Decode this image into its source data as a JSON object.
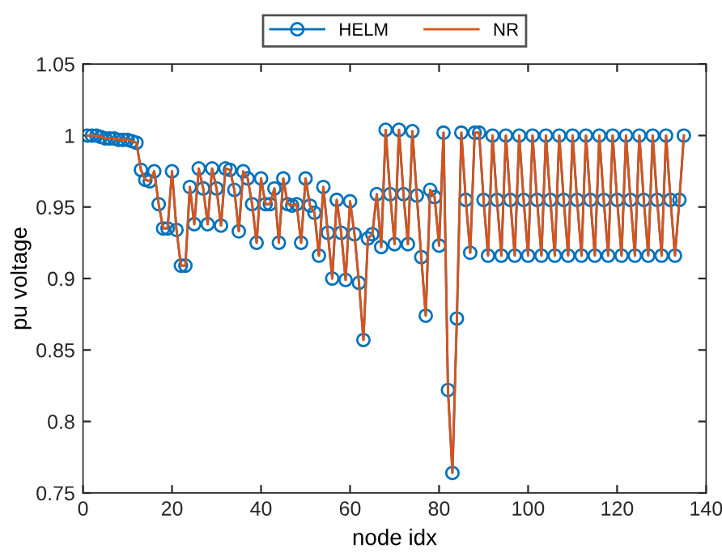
{
  "chart_data": {
    "type": "line",
    "xlabel": "node idx",
    "ylabel": "pu voltage",
    "xlim": [
      0,
      140
    ],
    "xticks": [
      0,
      20,
      40,
      60,
      80,
      100,
      120,
      140
    ],
    "ylim": [
      0.75,
      1.05
    ],
    "yticks": [
      0.75,
      0.8,
      0.85,
      0.9,
      0.95,
      1,
      1.05
    ],
    "grid": false,
    "legend": "top",
    "x": [
      1,
      2,
      3,
      4,
      5,
      6,
      7,
      8,
      9,
      10,
      11,
      12,
      13,
      14,
      15,
      16,
      17,
      18,
      19,
      20,
      21,
      22,
      23,
      24,
      25,
      26,
      27,
      28,
      29,
      30,
      31,
      32,
      33,
      34,
      35,
      36,
      37,
      38,
      39,
      40,
      41,
      42,
      43,
      44,
      45,
      46,
      47,
      48,
      49,
      50,
      51,
      52,
      53,
      54,
      55,
      56,
      57,
      58,
      59,
      60,
      61,
      62,
      63,
      64,
      65,
      66,
      67,
      68,
      69,
      70,
      71,
      72,
      73,
      74,
      75,
      76,
      77,
      78,
      79,
      80,
      81,
      82,
      83,
      84,
      85,
      86,
      87,
      88,
      89,
      90,
      91,
      92,
      93,
      94,
      95,
      96,
      97,
      98,
      99,
      100,
      101,
      102,
      103,
      104,
      105,
      106,
      107,
      108,
      109,
      110,
      111,
      112,
      113,
      114,
      115,
      116,
      117,
      118,
      119,
      120,
      121,
      122,
      123,
      124,
      125,
      126,
      127,
      128,
      129,
      130,
      131,
      132,
      133,
      134,
      135
    ],
    "series": [
      {
        "name": "HELM",
        "color": "#0072bd",
        "marker": "circle",
        "values": [
          1.0,
          1.0,
          1.0,
          0.999,
          0.998,
          0.998,
          0.998,
          0.997,
          0.997,
          0.997,
          0.996,
          0.995,
          0.976,
          0.969,
          0.968,
          0.975,
          0.952,
          0.935,
          0.935,
          0.975,
          0.934,
          0.909,
          0.909,
          0.964,
          0.938,
          0.977,
          0.963,
          0.938,
          0.977,
          0.963,
          0.937,
          0.977,
          0.976,
          0.962,
          0.933,
          0.975,
          0.97,
          0.952,
          0.925,
          0.97,
          0.952,
          0.952,
          0.963,
          0.925,
          0.97,
          0.952,
          0.951,
          0.952,
          0.925,
          0.97,
          0.951,
          0.946,
          0.916,
          0.964,
          0.932,
          0.9,
          0.955,
          0.932,
          0.899,
          0.954,
          0.931,
          0.897,
          0.857,
          0.928,
          0.931,
          0.959,
          0.922,
          1.004,
          0.959,
          0.924,
          1.004,
          0.959,
          0.924,
          1.003,
          0.958,
          0.915,
          0.874,
          0.962,
          0.957,
          0.923,
          1.002,
          0.822,
          0.764,
          0.872,
          1.002,
          0.955,
          0.918,
          1.002,
          1.002,
          0.955,
          0.916,
          1.0,
          0.955,
          0.916,
          1.0,
          0.955,
          0.916,
          1.0,
          0.955,
          0.916,
          1.0,
          0.955,
          0.916,
          1.0,
          0.955,
          0.916,
          1.0,
          0.955,
          0.916,
          1.0,
          0.955,
          0.916,
          1.0,
          0.955,
          0.916,
          1.0,
          0.955,
          0.916,
          1.0,
          0.955,
          0.916,
          1.0,
          0.955,
          0.916,
          1.0,
          0.955,
          0.916,
          1.0,
          0.955,
          0.916,
          1.0,
          0.955,
          0.916,
          0.955,
          1.0
        ]
      },
      {
        "name": "NR",
        "color": "#d95319",
        "marker": "none",
        "values": [
          1.0,
          1.0,
          1.0,
          0.999,
          0.998,
          0.998,
          0.998,
          0.997,
          0.997,
          0.997,
          0.996,
          0.995,
          0.976,
          0.969,
          0.968,
          0.975,
          0.952,
          0.935,
          0.935,
          0.975,
          0.934,
          0.909,
          0.909,
          0.964,
          0.938,
          0.977,
          0.963,
          0.938,
          0.977,
          0.963,
          0.937,
          0.977,
          0.976,
          0.962,
          0.933,
          0.975,
          0.97,
          0.952,
          0.925,
          0.97,
          0.952,
          0.952,
          0.963,
          0.925,
          0.97,
          0.952,
          0.951,
          0.952,
          0.925,
          0.97,
          0.951,
          0.946,
          0.916,
          0.964,
          0.932,
          0.9,
          0.955,
          0.932,
          0.899,
          0.954,
          0.931,
          0.897,
          0.857,
          0.928,
          0.931,
          0.959,
          0.922,
          1.004,
          0.959,
          0.924,
          1.004,
          0.959,
          0.924,
          1.003,
          0.958,
          0.915,
          0.874,
          0.962,
          0.957,
          0.923,
          1.002,
          0.822,
          0.764,
          0.872,
          1.002,
          0.955,
          0.918,
          1.002,
          1.002,
          0.955,
          0.916,
          1.0,
          0.955,
          0.916,
          1.0,
          0.955,
          0.916,
          1.0,
          0.955,
          0.916,
          1.0,
          0.955,
          0.916,
          1.0,
          0.955,
          0.916,
          1.0,
          0.955,
          0.916,
          1.0,
          0.955,
          0.916,
          1.0,
          0.955,
          0.916,
          1.0,
          0.955,
          0.916,
          1.0,
          0.955,
          0.916,
          1.0,
          0.955,
          0.916,
          1.0,
          0.955,
          0.916,
          1.0,
          0.955,
          0.916,
          1.0,
          0.955,
          0.916,
          0.955,
          1.0
        ]
      }
    ]
  }
}
